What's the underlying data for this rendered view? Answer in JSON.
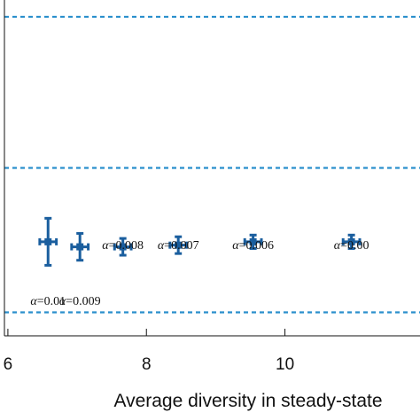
{
  "chart_data": {
    "type": "scatter",
    "xlabel": "Average diversity in steady-state",
    "ylabel": "",
    "xlim": [
      5.95,
      11.95
    ],
    "ylim": [
      0,
      1
    ],
    "grid": false,
    "x_ticks": [
      {
        "value": 6,
        "label": "6"
      },
      {
        "value": 8,
        "label": "8"
      },
      {
        "value": 10,
        "label": "10"
      }
    ],
    "reference_lines": [
      {
        "y": 0.07,
        "style": "dashed",
        "color": "#2a8fcc"
      },
      {
        "y": 0.5,
        "style": "dashed",
        "color": "#2a8fcc"
      },
      {
        "y": 0.95,
        "style": "dashed",
        "color": "#2a8fcc"
      }
    ],
    "series": [
      {
        "color": "#1a5e9e",
        "points": [
          {
            "x": 6.58,
            "y": 0.28,
            "xerr": 0.12,
            "yerr": 0.07,
            "label": "α=0.01",
            "label_pos": "below"
          },
          {
            "x": 7.04,
            "y": 0.265,
            "xerr": 0.12,
            "yerr": 0.04,
            "label": "α=0.009",
            "label_pos": "below"
          },
          {
            "x": 7.66,
            "y": 0.265,
            "xerr": 0.12,
            "yerr": 0.025,
            "label": "α=0.008",
            "label_pos": "above"
          },
          {
            "x": 8.46,
            "y": 0.27,
            "xerr": 0.12,
            "yerr": 0.025,
            "label": "α=0.007",
            "label_pos": "above"
          },
          {
            "x": 9.54,
            "y": 0.28,
            "xerr": 0.12,
            "yerr": 0.02,
            "label": "α=0.006",
            "label_pos": "above"
          },
          {
            "x": 10.96,
            "y": 0.28,
            "xerr": 0.12,
            "yerr": 0.02,
            "label": "α=0.00",
            "label_pos": "above"
          }
        ]
      }
    ]
  }
}
